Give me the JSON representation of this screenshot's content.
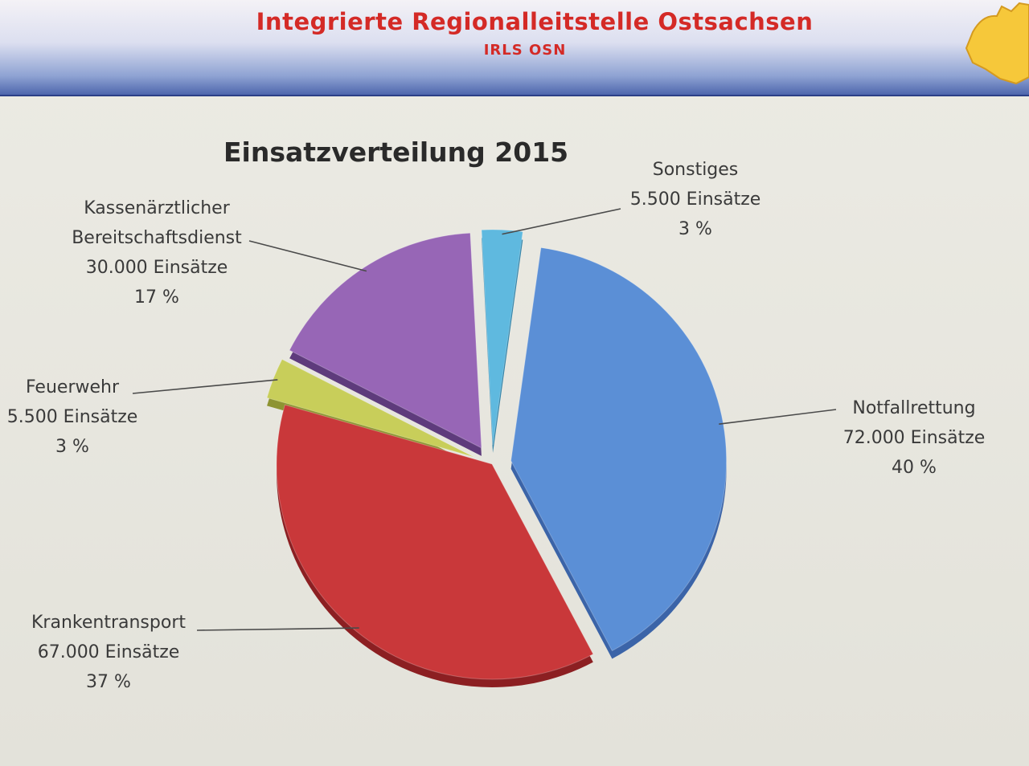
{
  "header": {
    "title": "Integrierte Regionalleitstelle Ostsachsen",
    "subtitle": "IRLS OSN"
  },
  "chart_data": {
    "type": "pie",
    "title": "Einsatzverteilung 2015",
    "start_angle_deg": 0,
    "slices": [
      {
        "label": "Notfallrettung",
        "value": 72000,
        "value_text": "72.000 Einsätze",
        "percent": 40,
        "percent_text": "40 %",
        "color": "#5b8fd6",
        "dark": "#3b64a8",
        "exploded": true
      },
      {
        "label": "Krankentransport",
        "value": 67000,
        "value_text": "67.000 Einsätze",
        "percent": 37,
        "percent_text": "37 %",
        "color": "#c9383a",
        "dark": "#8c1f22",
        "exploded": false
      },
      {
        "label": "Feuerwehr",
        "value": 5500,
        "value_text": "5.500 Einsätze",
        "percent": 3,
        "percent_text": "3 %",
        "color": "#c8ce5a",
        "dark": "#8e9432",
        "exploded": true
      },
      {
        "label": "Kassenärztlicher\nBereitschaftsdienst",
        "label_line1": "Kassenärztlicher",
        "label_line2": "Bereitschaftsdienst",
        "value": 30000,
        "value_text": "30.000 Einsätze",
        "percent": 17,
        "percent_text": "17 %",
        "color": "#9766b6",
        "dark": "#5e3b7c",
        "exploded": true
      },
      {
        "label": "Sonstiges",
        "value": 5500,
        "value_text": "5.500 Einsätze",
        "percent": 3,
        "percent_text": "3 %",
        "color": "#5fb9df",
        "dark": "#2f82a8",
        "exploded": true
      }
    ]
  }
}
